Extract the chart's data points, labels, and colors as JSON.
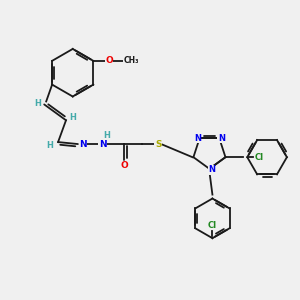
{
  "bg_color": "#f0f0f0",
  "bond_color": "#1a1a1a",
  "atom_colors": {
    "N": "#0000ee",
    "O": "#ee0000",
    "S": "#aaaa00",
    "Cl": "#228822",
    "H": "#44aaaa",
    "C": "#1a1a1a"
  },
  "figsize": [
    3.0,
    3.0
  ],
  "dpi": 100
}
